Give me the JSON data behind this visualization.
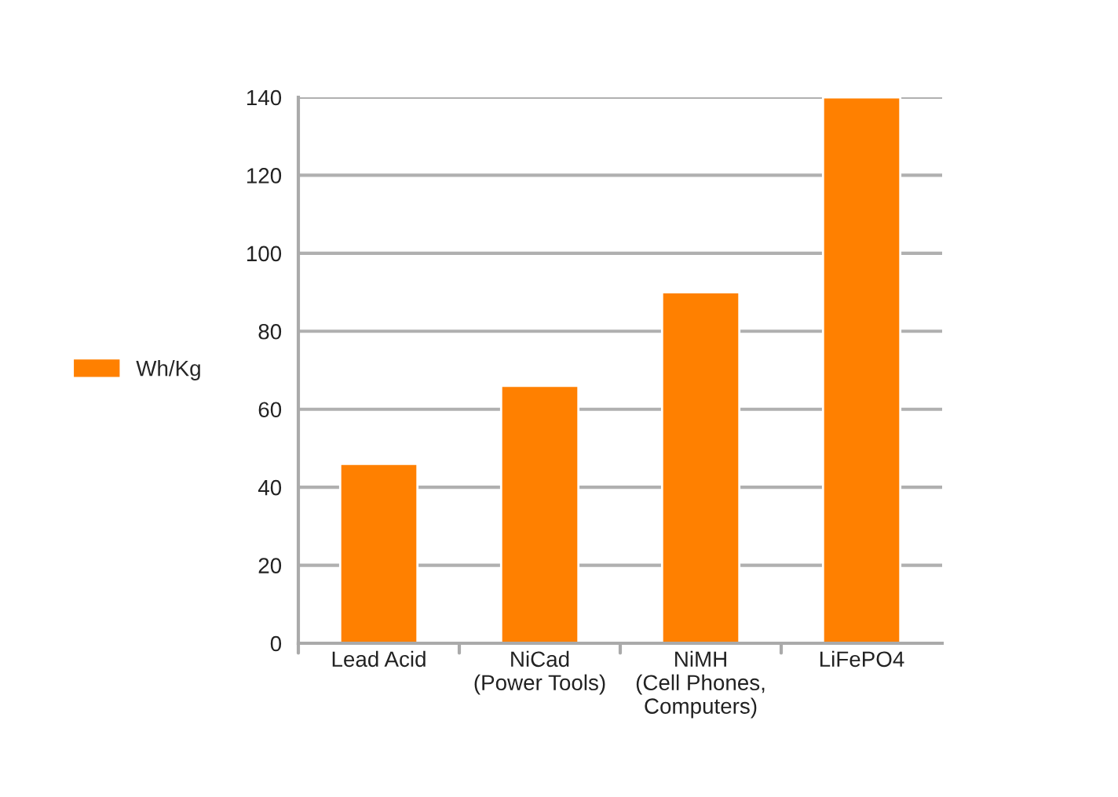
{
  "chart_data": {
    "type": "bar",
    "categories": [
      "Lead Acid",
      "NiCad\n(Power Tools)",
      "NiMH\n(Cell Phones,\nComputers)",
      "LiFePO4"
    ],
    "series": [
      {
        "name": "Wh/Kg",
        "color": "#ff8000",
        "values": [
          46,
          66,
          90,
          140
        ]
      }
    ],
    "ylim": [
      0,
      140
    ],
    "yticks": [
      0,
      20,
      40,
      60,
      80,
      100,
      120,
      140
    ],
    "grid": "y",
    "legend": "left"
  }
}
